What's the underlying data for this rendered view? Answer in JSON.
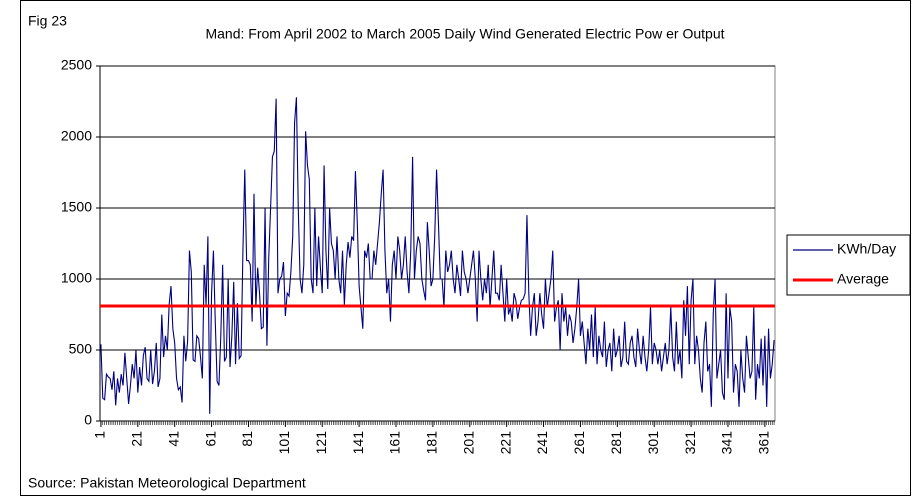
{
  "chart_data": {
    "type": "line",
    "label": "Fig 23",
    "title": "Mand: From April 2002 to March 2005 Daily Wind Generated Electric Pow er Output",
    "source": "Source: Pakistan Meteorological Department",
    "x": [
      1,
      2,
      3,
      4,
      5,
      6,
      7,
      8,
      9,
      10,
      11,
      12,
      13,
      14,
      15,
      16,
      17,
      18,
      19,
      20,
      21,
      22,
      23,
      24,
      25,
      26,
      27,
      28,
      29,
      30,
      31,
      32,
      33,
      34,
      35,
      36,
      37,
      38,
      39,
      40,
      41,
      42,
      43,
      44,
      45,
      46,
      47,
      48,
      49,
      50,
      51,
      52,
      53,
      54,
      55,
      56,
      57,
      58,
      59,
      60,
      61,
      62,
      63,
      64,
      65,
      66,
      67,
      68,
      69,
      70,
      71,
      72,
      73,
      74,
      75,
      76,
      77,
      78,
      79,
      80,
      81,
      82,
      83,
      84,
      85,
      86,
      87,
      88,
      89,
      90,
      91,
      92,
      93,
      94,
      95,
      96,
      97,
      98,
      99,
      100,
      101,
      102,
      103,
      104,
      105,
      106,
      107,
      108,
      109,
      110,
      111,
      112,
      113,
      114,
      115,
      116,
      117,
      118,
      119,
      120,
      121,
      122,
      123,
      124,
      125,
      126,
      127,
      128,
      129,
      130,
      131,
      132,
      133,
      134,
      135,
      136,
      137,
      138,
      139,
      140,
      141,
      142,
      143,
      144,
      145,
      146,
      147,
      148,
      149,
      150,
      151,
      152,
      153,
      154,
      155,
      156,
      157,
      158,
      159,
      160,
      161,
      162,
      163,
      164,
      165,
      166,
      167,
      168,
      169,
      170,
      171,
      172,
      173,
      174,
      175,
      176,
      177,
      178,
      179,
      180,
      181,
      182,
      183,
      184,
      185,
      186,
      187,
      188,
      189,
      190,
      191,
      192,
      193,
      194,
      195,
      196,
      197,
      198,
      199,
      200,
      201,
      202,
      203,
      204,
      205,
      206,
      207,
      208,
      209,
      210,
      211,
      212,
      213,
      214,
      215,
      216,
      217,
      218,
      219,
      220,
      221,
      222,
      223,
      224,
      225,
      226,
      227,
      228,
      229,
      230,
      231,
      232,
      233,
      234,
      235,
      236,
      237,
      238,
      239,
      240,
      241,
      242,
      243,
      244,
      245,
      246,
      247,
      248,
      249,
      250,
      251,
      252,
      253,
      254,
      255,
      256,
      257,
      258,
      259,
      260,
      261,
      262,
      263,
      264,
      265,
      266,
      267,
      268,
      269,
      270,
      271,
      272,
      273,
      274,
      275,
      276,
      277,
      278,
      279,
      280,
      281,
      282,
      283,
      284,
      285,
      286,
      287,
      288,
      289,
      290,
      291,
      292,
      293,
      294,
      295,
      296,
      297,
      298,
      299,
      300,
      301,
      302,
      303,
      304,
      305,
      306,
      307,
      308,
      309,
      310,
      311,
      312,
      313,
      314,
      315,
      316,
      317,
      318,
      319,
      320,
      321,
      322,
      323,
      324,
      325,
      326,
      327,
      328,
      329,
      330,
      331,
      332,
      333,
      334,
      335,
      336,
      337,
      338,
      339,
      340,
      341,
      342,
      343,
      344,
      345,
      346,
      347,
      348,
      349,
      350,
      351,
      352,
      353,
      354,
      355,
      356,
      357,
      358,
      359,
      360,
      361,
      362,
      363,
      364,
      365,
      366
    ],
    "series": [
      {
        "name": "KWh/Day",
        "color": "#000080",
        "values": [
          540,
          160,
          150,
          330,
          310,
          300,
          220,
          350,
          110,
          300,
          200,
          330,
          250,
          480,
          300,
          120,
          250,
          400,
          300,
          500,
          200,
          380,
          250,
          460,
          520,
          300,
          280,
          500,
          260,
          350,
          550,
          240,
          300,
          750,
          450,
          600,
          500,
          820,
          950,
          650,
          550,
          300,
          220,
          240,
          130,
          600,
          420,
          560,
          1200,
          1050,
          430,
          420,
          600,
          580,
          450,
          300,
          1100,
          820,
          1300,
          50,
          900,
          1200,
          700,
          280,
          250,
          600,
          1100,
          420,
          450,
          1000,
          380,
          600,
          980,
          400,
          830,
          440,
          460,
          1200,
          1770,
          1130,
          1130,
          1100,
          700,
          1600,
          800,
          1080,
          900,
          650,
          660,
          1500,
          530,
          1150,
          1500,
          1860,
          1900,
          2270,
          900,
          1000,
          1020,
          1120,
          740,
          900,
          880,
          1050,
          1300,
          2100,
          2280,
          1500,
          1000,
          900,
          1100,
          2040,
          1800,
          1700,
          1000,
          900,
          1500,
          950,
          1300,
          1080,
          900,
          1800,
          1200,
          930,
          1500,
          1250,
          1200,
          1000,
          1300,
          1000,
          900,
          1200,
          820,
          1100,
          1260,
          1150,
          1300,
          1270,
          1760,
          1400,
          950,
          800,
          650,
          1200,
          1150,
          1250,
          1000,
          1000,
          1200,
          1100,
          1250,
          1400,
          1600,
          1770,
          1200,
          900,
          1000,
          700,
          1100,
          1200,
          1000,
          1300,
          1200,
          1000,
          1100,
          1300,
          1050,
          900,
          1200,
          1860,
          1000,
          1200,
          1300,
          1250,
          1000,
          920,
          850,
          1400,
          1200,
          950,
          1000,
          1300,
          1770,
          1400,
          1000,
          1000,
          800,
          1200,
          1050,
          1100,
          1200,
          1000,
          900,
          1100,
          1000,
          880,
          1200,
          1050,
          1000,
          900,
          1000,
          1100,
          1200,
          1000,
          700,
          1200,
          1000,
          850,
          1000,
          900,
          1100,
          800,
          1000,
          1200,
          900,
          900,
          850,
          1100,
          900,
          700,
          1000,
          750,
          800,
          700,
          900,
          850,
          720,
          800,
          850,
          860,
          900,
          1450,
          900,
          600,
          800,
          900,
          600,
          700,
          900,
          750,
          650,
          1000,
          800,
          900,
          1000,
          1200,
          700,
          800,
          850,
          500,
          900,
          700,
          800,
          600,
          750,
          700,
          550,
          650,
          800,
          1000,
          600,
          700,
          550,
          400,
          650,
          500,
          750,
          450,
          800,
          400,
          600,
          500,
          450,
          700,
          380,
          500,
          550,
          350,
          650,
          450,
          500,
          600,
          380,
          450,
          700,
          420,
          400,
          550,
          600,
          450,
          380,
          650,
          500,
          400,
          600,
          450,
          350,
          500,
          800,
          400,
          550,
          500,
          400,
          500,
          350,
          450,
          550,
          400,
          500,
          800,
          450,
          350,
          700,
          400,
          500,
          300,
          850,
          600,
          950,
          400,
          850,
          1000,
          400,
          600,
          500,
          300,
          200,
          550,
          700,
          350,
          400,
          100,
          750,
          1000,
          300,
          400,
          500,
          200,
          150,
          900,
          300,
          800,
          700,
          200,
          400,
          350,
          100,
          500,
          300,
          200,
          600,
          450,
          300,
          350,
          800,
          150,
          400,
          300,
          580,
          250,
          600,
          100,
          650,
          300,
          400,
          570
        ]
      }
    ],
    "reference_lines": [
      {
        "name": "Average",
        "color": "#ff0000",
        "value": 810
      }
    ],
    "xlim": [
      0.5,
      366.5
    ],
    "xticks": [
      1,
      21,
      41,
      61,
      81,
      101,
      121,
      141,
      161,
      181,
      201,
      221,
      241,
      261,
      281,
      301,
      321,
      341,
      361
    ],
    "ylim": [
      0,
      2500
    ],
    "yticks": [
      0,
      500,
      1000,
      1500,
      2000,
      2500
    ],
    "grid": true,
    "legend": "right"
  }
}
